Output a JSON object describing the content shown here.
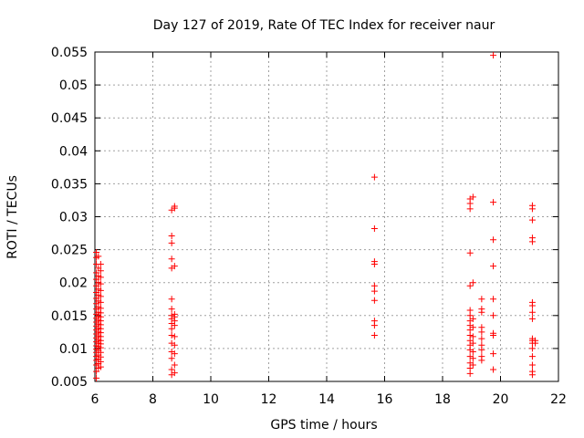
{
  "chart_data": {
    "type": "scatter",
    "title": "Day 127 of 2019, Rate Of TEC Index for receiver naur",
    "xlabel": "GPS time / hours",
    "ylabel": "ROTI / TECUs",
    "xlim": [
      6,
      22
    ],
    "ylim": [
      0.005,
      0.055
    ],
    "xticks": [
      6,
      8,
      10,
      12,
      14,
      16,
      18,
      20,
      22
    ],
    "xtick_labels": [
      "6",
      "8",
      "10",
      "12",
      "14",
      "16",
      "18",
      "20",
      "22"
    ],
    "yticks": [
      0.005,
      0.01,
      0.015,
      0.02,
      0.025,
      0.03,
      0.035,
      0.04,
      0.045,
      0.05,
      0.055
    ],
    "ytick_labels": [
      "0.005",
      "0.01",
      "0.015",
      "0.02",
      "0.025",
      "0.03",
      "0.035",
      "0.04",
      "0.045",
      "0.05",
      "0.055"
    ],
    "grid": true,
    "marker": "+",
    "color": "#ff0000",
    "series": [
      {
        "name": "ROTI",
        "points": [
          [
            6.05,
            0.0055
          ],
          [
            6.05,
            0.0065
          ],
          [
            6.05,
            0.0075
          ],
          [
            6.05,
            0.0082
          ],
          [
            6.05,
            0.0088
          ],
          [
            6.05,
            0.0094
          ],
          [
            6.05,
            0.0099
          ],
          [
            6.05,
            0.0104
          ],
          [
            6.05,
            0.011
          ],
          [
            6.05,
            0.0116
          ],
          [
            6.05,
            0.0122
          ],
          [
            6.05,
            0.0128
          ],
          [
            6.05,
            0.0134
          ],
          [
            6.05,
            0.014
          ],
          [
            6.05,
            0.0146
          ],
          [
            6.05,
            0.0152
          ],
          [
            6.05,
            0.016
          ],
          [
            6.05,
            0.0168
          ],
          [
            6.05,
            0.0176
          ],
          [
            6.05,
            0.0185
          ],
          [
            6.05,
            0.0195
          ],
          [
            6.05,
            0.0205
          ],
          [
            6.05,
            0.0215
          ],
          [
            6.05,
            0.0228
          ],
          [
            6.05,
            0.0238
          ],
          [
            6.05,
            0.0246
          ],
          [
            6.12,
            0.007
          ],
          [
            6.12,
            0.0077
          ],
          [
            6.12,
            0.0084
          ],
          [
            6.12,
            0.009
          ],
          [
            6.12,
            0.0097
          ],
          [
            6.12,
            0.0103
          ],
          [
            6.12,
            0.0108
          ],
          [
            6.12,
            0.0113
          ],
          [
            6.12,
            0.0119
          ],
          [
            6.12,
            0.0125
          ],
          [
            6.12,
            0.0131
          ],
          [
            6.12,
            0.0137
          ],
          [
            6.12,
            0.0143
          ],
          [
            6.12,
            0.0149
          ],
          [
            6.12,
            0.0155
          ],
          [
            6.12,
            0.0163
          ],
          [
            6.12,
            0.0172
          ],
          [
            6.12,
            0.0181
          ],
          [
            6.12,
            0.019
          ],
          [
            6.12,
            0.02
          ],
          [
            6.12,
            0.021
          ],
          [
            6.12,
            0.0222
          ],
          [
            6.12,
            0.024
          ],
          [
            6.2,
            0.0072
          ],
          [
            6.2,
            0.008
          ],
          [
            6.2,
            0.0087
          ],
          [
            6.2,
            0.0094
          ],
          [
            6.2,
            0.0101
          ],
          [
            6.2,
            0.0107
          ],
          [
            6.2,
            0.0112
          ],
          [
            6.2,
            0.0118
          ],
          [
            6.2,
            0.0124
          ],
          [
            6.2,
            0.013
          ],
          [
            6.2,
            0.0136
          ],
          [
            6.2,
            0.0142
          ],
          [
            6.2,
            0.0148
          ],
          [
            6.2,
            0.0154
          ],
          [
            6.2,
            0.0161
          ],
          [
            6.2,
            0.017
          ],
          [
            6.2,
            0.0179
          ],
          [
            6.2,
            0.0188
          ],
          [
            6.2,
            0.0198
          ],
          [
            6.2,
            0.0208
          ],
          [
            6.2,
            0.0218
          ],
          [
            6.2,
            0.0228
          ],
          [
            8.65,
            0.006
          ],
          [
            8.65,
            0.0068
          ],
          [
            8.65,
            0.0085
          ],
          [
            8.65,
            0.0095
          ],
          [
            8.65,
            0.0108
          ],
          [
            8.65,
            0.012
          ],
          [
            8.65,
            0.013
          ],
          [
            8.65,
            0.0138
          ],
          [
            8.65,
            0.0145
          ],
          [
            8.65,
            0.015
          ],
          [
            8.65,
            0.016
          ],
          [
            8.65,
            0.0175
          ],
          [
            8.65,
            0.0222
          ],
          [
            8.65,
            0.0236
          ],
          [
            8.65,
            0.026
          ],
          [
            8.65,
            0.0271
          ],
          [
            8.65,
            0.031
          ],
          [
            8.75,
            0.0063
          ],
          [
            8.75,
            0.0075
          ],
          [
            8.75,
            0.0092
          ],
          [
            8.75,
            0.0105
          ],
          [
            8.75,
            0.0118
          ],
          [
            8.75,
            0.0135
          ],
          [
            8.75,
            0.0142
          ],
          [
            8.75,
            0.0148
          ],
          [
            8.75,
            0.0152
          ],
          [
            8.75,
            0.0225
          ],
          [
            8.75,
            0.0313
          ],
          [
            8.75,
            0.0316
          ],
          [
            15.65,
            0.012
          ],
          [
            15.65,
            0.0135
          ],
          [
            15.65,
            0.0142
          ],
          [
            15.65,
            0.0173
          ],
          [
            15.65,
            0.0187
          ],
          [
            15.65,
            0.0195
          ],
          [
            15.65,
            0.0228
          ],
          [
            15.65,
            0.0232
          ],
          [
            15.65,
            0.0282
          ],
          [
            15.65,
            0.036
          ],
          [
            18.95,
            0.0062
          ],
          [
            18.95,
            0.007
          ],
          [
            18.95,
            0.0078
          ],
          [
            18.95,
            0.0088
          ],
          [
            18.95,
            0.0098
          ],
          [
            18.95,
            0.0105
          ],
          [
            18.95,
            0.0112
          ],
          [
            18.95,
            0.012
          ],
          [
            18.95,
            0.0128
          ],
          [
            18.95,
            0.0135
          ],
          [
            18.95,
            0.0142
          ],
          [
            18.95,
            0.015
          ],
          [
            18.95,
            0.0158
          ],
          [
            18.95,
            0.0195
          ],
          [
            18.95,
            0.0245
          ],
          [
            18.95,
            0.0312
          ],
          [
            18.95,
            0.032
          ],
          [
            18.95,
            0.0327
          ],
          [
            19.05,
            0.0075
          ],
          [
            19.05,
            0.0085
          ],
          [
            19.05,
            0.0095
          ],
          [
            19.05,
            0.0108
          ],
          [
            19.05,
            0.0118
          ],
          [
            19.05,
            0.0132
          ],
          [
            19.05,
            0.0145
          ],
          [
            19.05,
            0.02
          ],
          [
            19.05,
            0.033
          ],
          [
            19.35,
            0.0082
          ],
          [
            19.35,
            0.0088
          ],
          [
            19.35,
            0.0098
          ],
          [
            19.35,
            0.0105
          ],
          [
            19.35,
            0.0115
          ],
          [
            19.35,
            0.0125
          ],
          [
            19.35,
            0.0132
          ],
          [
            19.35,
            0.0155
          ],
          [
            19.35,
            0.016
          ],
          [
            19.35,
            0.0175
          ],
          [
            19.75,
            0.0068
          ],
          [
            19.75,
            0.0092
          ],
          [
            19.75,
            0.012
          ],
          [
            19.75,
            0.0123
          ],
          [
            19.75,
            0.015
          ],
          [
            19.75,
            0.0175
          ],
          [
            19.75,
            0.0225
          ],
          [
            19.75,
            0.0265
          ],
          [
            19.75,
            0.0322
          ],
          [
            19.75,
            0.0545
          ],
          [
            21.1,
            0.006
          ],
          [
            21.1,
            0.0065
          ],
          [
            21.1,
            0.0075
          ],
          [
            21.1,
            0.0088
          ],
          [
            21.1,
            0.01
          ],
          [
            21.1,
            0.0108
          ],
          [
            21.1,
            0.0112
          ],
          [
            21.1,
            0.0115
          ],
          [
            21.1,
            0.0145
          ],
          [
            21.1,
            0.0155
          ],
          [
            21.1,
            0.0165
          ],
          [
            21.1,
            0.017
          ],
          [
            21.1,
            0.0262
          ],
          [
            21.1,
            0.0268
          ],
          [
            21.1,
            0.0295
          ],
          [
            21.1,
            0.0312
          ],
          [
            21.1,
            0.0317
          ],
          [
            21.2,
            0.0108
          ],
          [
            21.2,
            0.0112
          ]
        ]
      }
    ]
  }
}
